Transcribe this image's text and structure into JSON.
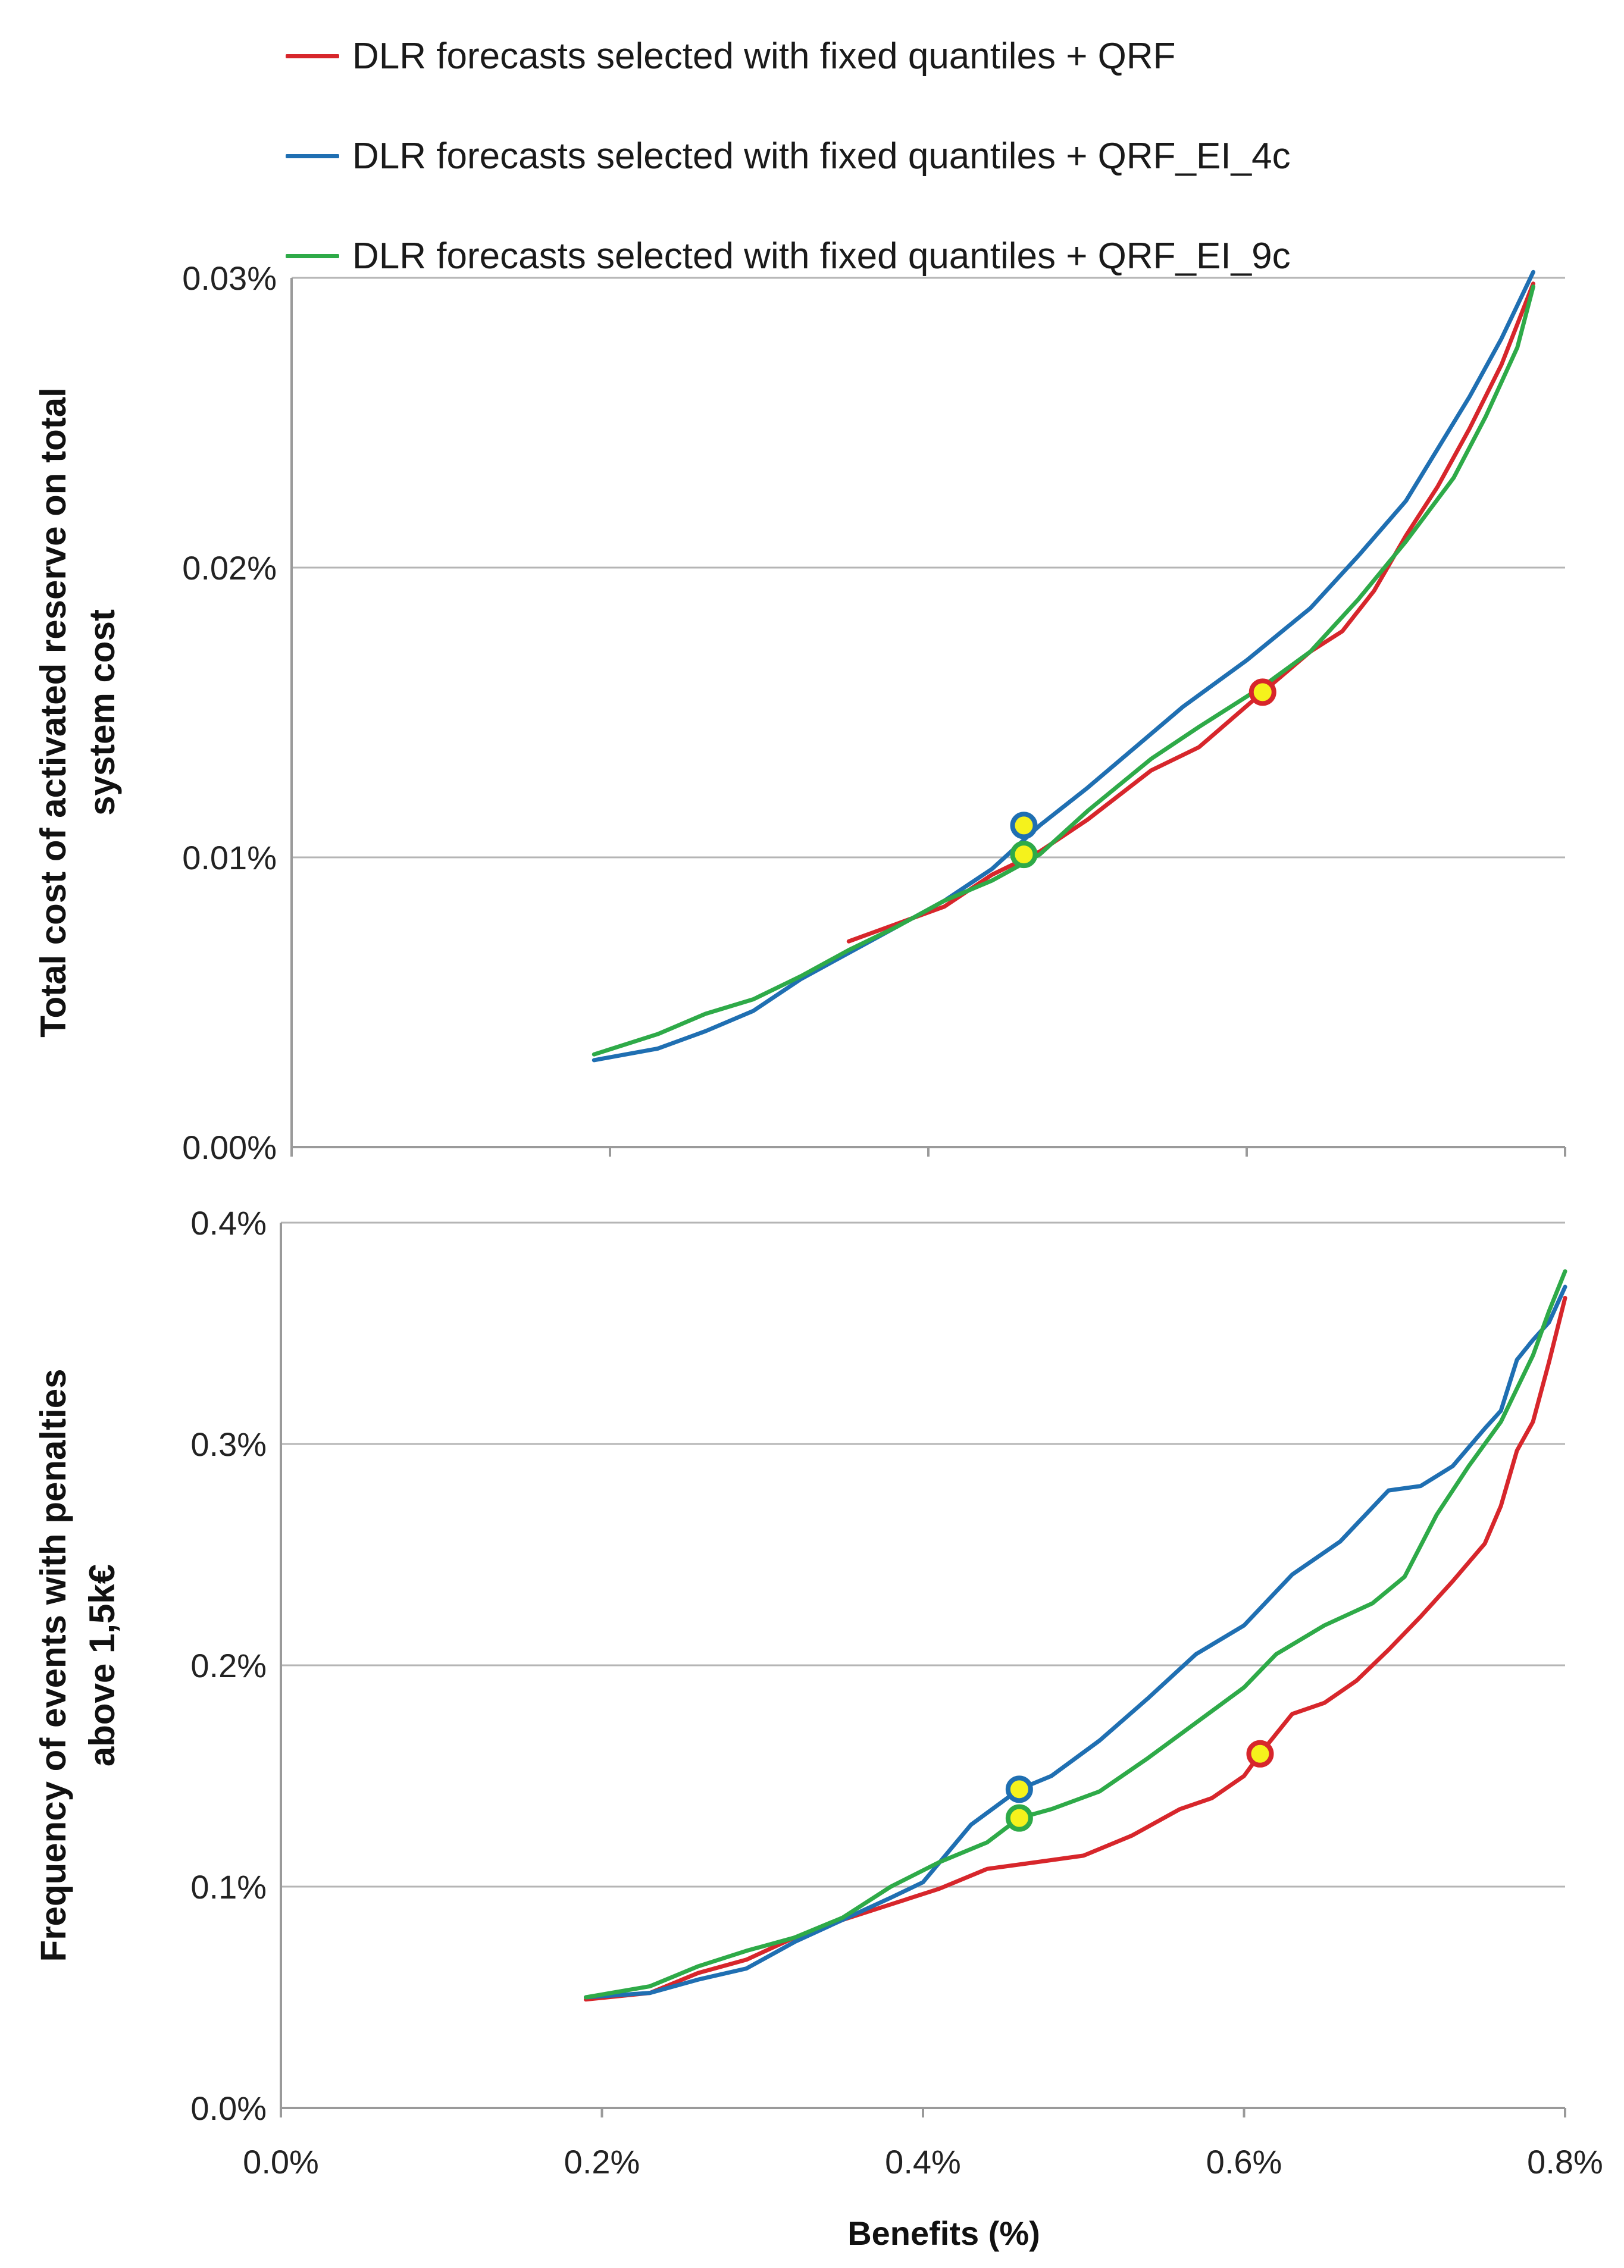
{
  "legend": [
    {
      "label": "DLR forecasts selected with fixed quantiles + QRF",
      "color": "#d7262b"
    },
    {
      "label": "DLR forecasts selected with fixed quantiles + QRF_EI_4c",
      "color": "#1f6fb2"
    },
    {
      "label": "DLR forecasts selected with fixed quantiles + QRF_EI_9c",
      "color": "#2eaa48"
    }
  ],
  "chart_data": [
    {
      "type": "line",
      "ylabel_lines": [
        "Total cost of activated reserve on total",
        "system cost"
      ],
      "xlim": [
        0.0,
        0.8
      ],
      "ylim": [
        0.0,
        0.03
      ],
      "yticks": [
        "0.00%",
        "0.01%",
        "0.02%",
        "0.03%"
      ],
      "ytick_values": [
        0.0,
        0.01,
        0.02,
        0.03
      ],
      "grid": true,
      "series": [
        {
          "name": "DLR forecasts selected with fixed quantiles + QRF",
          "color": "#d7262b",
          "x": [
            0.35,
            0.38,
            0.41,
            0.44,
            0.47,
            0.5,
            0.54,
            0.57,
            0.61,
            0.64,
            0.66,
            0.68,
            0.7,
            0.72,
            0.74,
            0.76,
            0.77,
            0.78
          ],
          "y": [
            0.0071,
            0.0077,
            0.0083,
            0.0094,
            0.0102,
            0.0113,
            0.013,
            0.0138,
            0.0157,
            0.0171,
            0.0178,
            0.0192,
            0.0211,
            0.0228,
            0.0248,
            0.027,
            0.0284,
            0.0298
          ],
          "highlight": [
            {
              "x": 0.61,
              "y": 0.0157
            }
          ]
        },
        {
          "name": "DLR forecasts selected with fixed quantiles + QRF_EI_4c",
          "color": "#1f6fb2",
          "x": [
            0.19,
            0.23,
            0.26,
            0.29,
            0.32,
            0.35,
            0.38,
            0.41,
            0.44,
            0.47,
            0.5,
            0.53,
            0.56,
            0.6,
            0.64,
            0.67,
            0.7,
            0.72,
            0.74,
            0.76,
            0.78
          ],
          "y": [
            0.003,
            0.0034,
            0.004,
            0.0047,
            0.0058,
            0.0067,
            0.0076,
            0.0085,
            0.0096,
            0.0111,
            0.0124,
            0.0138,
            0.0152,
            0.0168,
            0.0186,
            0.0204,
            0.0223,
            0.0241,
            0.0259,
            0.0279,
            0.0302
          ],
          "highlight": [
            {
              "x": 0.46,
              "y": 0.0111
            }
          ]
        },
        {
          "name": "DLR forecasts selected with fixed quantiles + QRF_EI_9c",
          "color": "#2eaa48",
          "x": [
            0.19,
            0.23,
            0.26,
            0.29,
            0.32,
            0.35,
            0.38,
            0.41,
            0.44,
            0.47,
            0.5,
            0.54,
            0.57,
            0.61,
            0.64,
            0.67,
            0.7,
            0.73,
            0.75,
            0.77,
            0.78
          ],
          "y": [
            0.0032,
            0.0039,
            0.0046,
            0.0051,
            0.0059,
            0.0068,
            0.0076,
            0.0085,
            0.0092,
            0.0101,
            0.0116,
            0.0134,
            0.0145,
            0.0159,
            0.0171,
            0.0189,
            0.0209,
            0.0231,
            0.0252,
            0.0276,
            0.0297
          ],
          "highlight": [
            {
              "x": 0.46,
              "y": 0.0101
            }
          ]
        }
      ]
    },
    {
      "type": "line",
      "ylabel_lines": [
        "Frequency of events with penalties",
        "above 1,5k€"
      ],
      "xlabel": "Benefits (%)",
      "xlim": [
        0.0,
        0.8
      ],
      "ylim": [
        0.0,
        0.4
      ],
      "xticks": [
        "0.0%",
        "0.2%",
        "0.4%",
        "0.6%",
        "0.8%"
      ],
      "xtick_values": [
        0.0,
        0.2,
        0.4,
        0.6,
        0.8
      ],
      "yticks": [
        "0.0%",
        "0.1%",
        "0.2%",
        "0.3%",
        "0.4%"
      ],
      "ytick_values": [
        0.0,
        0.1,
        0.2,
        0.3,
        0.4
      ],
      "grid": true,
      "series": [
        {
          "name": "DLR forecasts selected with fixed quantiles + QRF",
          "color": "#d7262b",
          "x": [
            0.19,
            0.23,
            0.26,
            0.29,
            0.32,
            0.35,
            0.38,
            0.41,
            0.44,
            0.47,
            0.5,
            0.53,
            0.56,
            0.58,
            0.6,
            0.61,
            0.63,
            0.65,
            0.67,
            0.69,
            0.71,
            0.73,
            0.75,
            0.76,
            0.77,
            0.78,
            0.79,
            0.8
          ],
          "y": [
            0.049,
            0.052,
            0.061,
            0.067,
            0.077,
            0.085,
            0.092,
            0.099,
            0.108,
            0.111,
            0.114,
            0.123,
            0.135,
            0.14,
            0.15,
            0.16,
            0.178,
            0.183,
            0.193,
            0.207,
            0.222,
            0.238,
            0.255,
            0.272,
            0.297,
            0.31,
            0.337,
            0.366
          ],
          "highlight": [
            {
              "x": 0.61,
              "y": 0.16
            }
          ]
        },
        {
          "name": "DLR forecasts selected with fixed quantiles + QRF_EI_4c",
          "color": "#1f6fb2",
          "x": [
            0.19,
            0.23,
            0.26,
            0.29,
            0.32,
            0.35,
            0.38,
            0.4,
            0.43,
            0.46,
            0.48,
            0.51,
            0.54,
            0.57,
            0.6,
            0.63,
            0.66,
            0.69,
            0.71,
            0.73,
            0.75,
            0.76,
            0.77,
            0.78,
            0.79,
            0.8
          ],
          "y": [
            0.05,
            0.052,
            0.058,
            0.063,
            0.075,
            0.085,
            0.095,
            0.102,
            0.128,
            0.144,
            0.15,
            0.166,
            0.185,
            0.205,
            0.218,
            0.241,
            0.256,
            0.279,
            0.281,
            0.29,
            0.307,
            0.315,
            0.338,
            0.347,
            0.355,
            0.371
          ],
          "highlight": [
            {
              "x": 0.46,
              "y": 0.144
            }
          ]
        },
        {
          "name": "DLR forecasts selected with fixed quantiles + QRF_EI_9c",
          "color": "#2eaa48",
          "x": [
            0.19,
            0.23,
            0.26,
            0.29,
            0.32,
            0.35,
            0.38,
            0.41,
            0.44,
            0.46,
            0.48,
            0.51,
            0.54,
            0.57,
            0.6,
            0.62,
            0.65,
            0.68,
            0.7,
            0.72,
            0.74,
            0.76,
            0.78,
            0.79,
            0.8
          ],
          "y": [
            0.05,
            0.055,
            0.064,
            0.071,
            0.077,
            0.086,
            0.1,
            0.111,
            0.12,
            0.131,
            0.135,
            0.143,
            0.158,
            0.174,
            0.19,
            0.205,
            0.218,
            0.228,
            0.24,
            0.268,
            0.29,
            0.31,
            0.34,
            0.36,
            0.378
          ],
          "highlight": [
            {
              "x": 0.46,
              "y": 0.131
            }
          ]
        }
      ]
    }
  ]
}
